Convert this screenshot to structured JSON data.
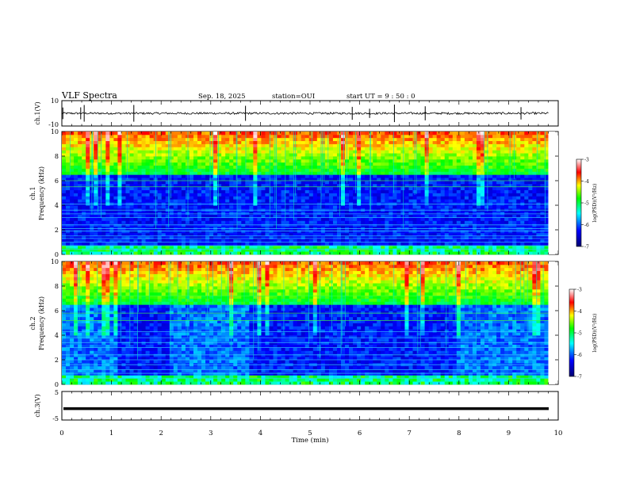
{
  "header": {
    "title": "VLF Spectra",
    "date": "Sep. 18, 2025",
    "station": "station=OUI",
    "start": "start UT =  9 : 50 : 0"
  },
  "chart_data": [
    {
      "id": "ch1-waveform",
      "type": "line",
      "ylabel": "ch.1(V)",
      "ylim": [
        -10,
        10
      ],
      "y_ticks": [
        "10",
        "-10"
      ],
      "xlim": [
        0,
        10
      ],
      "x_unit": "min",
      "description_values": {
        "baseline": 0,
        "spike_times_min": [
          0.02,
          0.38,
          0.45,
          1.45,
          3.7,
          5.85,
          6.2,
          6.7,
          7.32,
          9.25
        ]
      }
    },
    {
      "id": "ch1-spectrogram",
      "type": "heatmap",
      "ylabel_top": "ch.1",
      "ylabel": "Frequency (kHz)",
      "ylim": [
        0,
        10
      ],
      "y_ticks": [
        "0",
        "2",
        "4",
        "6",
        "8",
        "10"
      ],
      "xlim": [
        0,
        9.8
      ],
      "colorbar": {
        "label": "log(PSD)(V²/Hz)",
        "range": [
          -7,
          -3
        ],
        "ticks": [
          "-3",
          "-4",
          "-5",
          "-6",
          "-7"
        ]
      },
      "hiss_boundary_khz": 6.5,
      "interference_lines_khz": [
        0.4,
        0.7,
        1.0,
        1.3,
        1.5,
        1.9,
        2.1,
        2.4,
        3.0,
        3.3,
        3.6,
        4.1,
        5.5,
        6.0
      ]
    },
    {
      "id": "ch2-spectrogram",
      "type": "heatmap",
      "ylabel_top": "ch.2",
      "ylabel": "Frequency (kHz)",
      "ylim": [
        0,
        10
      ],
      "y_ticks": [
        "0",
        "2",
        "4",
        "6",
        "8",
        "10"
      ],
      "xlim": [
        0,
        9.8
      ],
      "colorbar": {
        "label": "log(PSD)(V²/Hz)",
        "range": [
          -7,
          -3
        ],
        "ticks": [
          "-3",
          "-4",
          "-5",
          "-6",
          "-7"
        ]
      },
      "hiss_boundary_khz": 6.5,
      "interference_lines_khz": [
        0.5,
        0.9,
        1.2,
        1.6,
        2.0,
        2.4,
        3.0,
        3.4,
        3.8,
        4.3,
        5.2,
        5.8,
        7.2
      ]
    },
    {
      "id": "ch3-waveform",
      "type": "line",
      "ylabel": "ch.3(V)",
      "ylim": [
        -5,
        5
      ],
      "y_ticks": [
        "5",
        "-5"
      ],
      "xlim": [
        0,
        10
      ],
      "baseline_value": -1
    }
  ],
  "x_axis": {
    "label": "Time (min)",
    "ticks": [
      "0",
      "1",
      "2",
      "3",
      "4",
      "5",
      "6",
      "7",
      "8",
      "9",
      "10"
    ]
  }
}
